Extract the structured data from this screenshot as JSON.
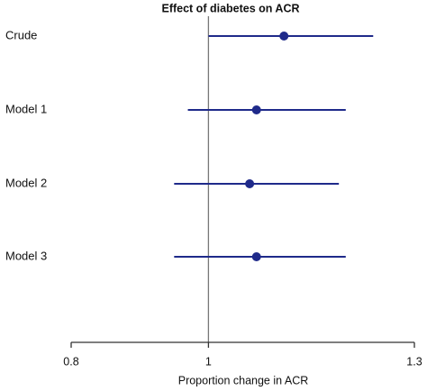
{
  "chart_data": {
    "type": "forest",
    "title": "Effect of diabetes on ACR",
    "xlabel": "Proportion change in ACR",
    "xlim": [
      0.8,
      1.3
    ],
    "x_ticks": [
      0.8,
      1,
      1.3
    ],
    "x_tick_labels": [
      "0.8",
      "1",
      "1.3"
    ],
    "reference_line": 1,
    "rows": [
      {
        "label": "Crude",
        "estimate": 1.11,
        "lower": 1.0,
        "upper": 1.24
      },
      {
        "label": "Model 1",
        "estimate": 1.07,
        "lower": 0.97,
        "upper": 1.2
      },
      {
        "label": "Model 2",
        "estimate": 1.06,
        "lower": 0.95,
        "upper": 1.19
      },
      {
        "label": "Model 3",
        "estimate": 1.07,
        "lower": 0.95,
        "upper": 1.2
      }
    ],
    "colors": {
      "marker": "#1f2a8a",
      "reference_line": "#777777",
      "axis": "#333333"
    }
  }
}
